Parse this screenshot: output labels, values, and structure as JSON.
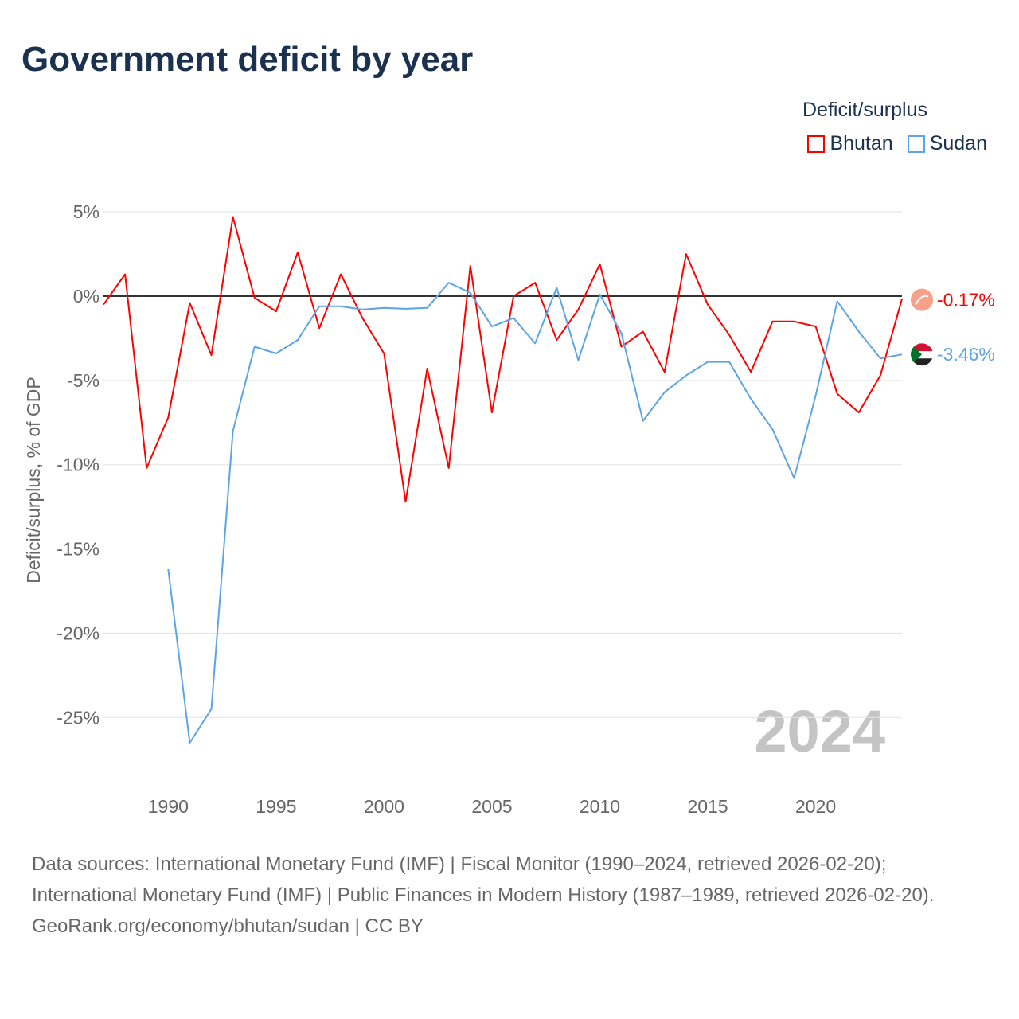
{
  "title": "Government deficit by year",
  "legend": {
    "title": "Deficit/surplus",
    "items": [
      {
        "label": "Bhutan",
        "color": "#ff0000"
      },
      {
        "label": "Sudan",
        "color": "#5ba4e8"
      }
    ]
  },
  "footer": {
    "sources": "Data sources: International Monetary Fund (IMF) | Fiscal Monitor (1990–2024, retrieved 2026-02-20); International Monetary Fund (IMF) | Public Finances in Modern History (1987–1989, retrieved 2026-02-20).",
    "credit": "GeoRank.org/economy/bhutan/sudan | CC BY"
  },
  "chart_data": {
    "type": "line",
    "title": "Government deficit by year",
    "xlabel": "",
    "ylabel": "Deficit/surplus, % of GDP",
    "xlim": [
      1987,
      2024
    ],
    "ylim": [
      -28,
      6
    ],
    "x_ticks": [
      1990,
      1995,
      2000,
      2005,
      2010,
      2015,
      2020
    ],
    "y_ticks": [
      5,
      0,
      -5,
      -10,
      -15,
      -20,
      -25
    ],
    "y_tick_labels": [
      "5%",
      "0%",
      "-5%",
      "-10%",
      "-15%",
      "-20%",
      "-25%"
    ],
    "watermark_year": "2024",
    "series": [
      {
        "name": "Bhutan",
        "color": "#ff0000",
        "end_label": "-0.17%",
        "x": [
          1987,
          1988,
          1989,
          1990,
          1991,
          1992,
          1993,
          1994,
          1995,
          1996,
          1997,
          1998,
          1999,
          2000,
          2001,
          2002,
          2003,
          2004,
          2005,
          2006,
          2007,
          2008,
          2009,
          2010,
          2011,
          2012,
          2013,
          2014,
          2015,
          2016,
          2017,
          2018,
          2019,
          2020,
          2021,
          2022,
          2023,
          2024
        ],
        "values": [
          -0.5,
          1.3,
          -10.2,
          -7.2,
          -0.4,
          -3.5,
          4.7,
          -0.1,
          -0.9,
          2.6,
          -1.9,
          1.3,
          -1.3,
          -3.4,
          -12.2,
          -4.3,
          -10.2,
          1.8,
          -6.9,
          0.0,
          0.8,
          -2.6,
          -0.8,
          1.9,
          -3.0,
          -2.1,
          -4.5,
          2.5,
          -0.5,
          -2.3,
          -4.5,
          -1.5,
          -1.5,
          -1.8,
          -5.8,
          -6.9,
          -4.7,
          -0.17
        ]
      },
      {
        "name": "Sudan",
        "color": "#5ba4e8",
        "end_label": "-3.46%",
        "x": [
          1990,
          1991,
          1992,
          1993,
          1994,
          1995,
          1996,
          1997,
          1998,
          1999,
          2000,
          2001,
          2002,
          2003,
          2004,
          2005,
          2006,
          2007,
          2008,
          2009,
          2010,
          2011,
          2012,
          2013,
          2014,
          2015,
          2016,
          2017,
          2018,
          2019,
          2020,
          2021,
          2022,
          2023,
          2024
        ],
        "values": [
          -16.2,
          -26.5,
          -24.5,
          -8.0,
          -3.0,
          -3.4,
          -2.6,
          -0.6,
          -0.6,
          -0.8,
          -0.7,
          -0.75,
          -0.7,
          0.8,
          0.2,
          -1.8,
          -1.3,
          -2.8,
          0.5,
          -3.8,
          0.1,
          -2.2,
          -7.4,
          -5.7,
          -4.7,
          -3.9,
          -3.9,
          -6.1,
          -7.9,
          -10.8,
          -5.9,
          -0.3,
          -2.1,
          -3.7,
          -3.46
        ]
      }
    ]
  }
}
